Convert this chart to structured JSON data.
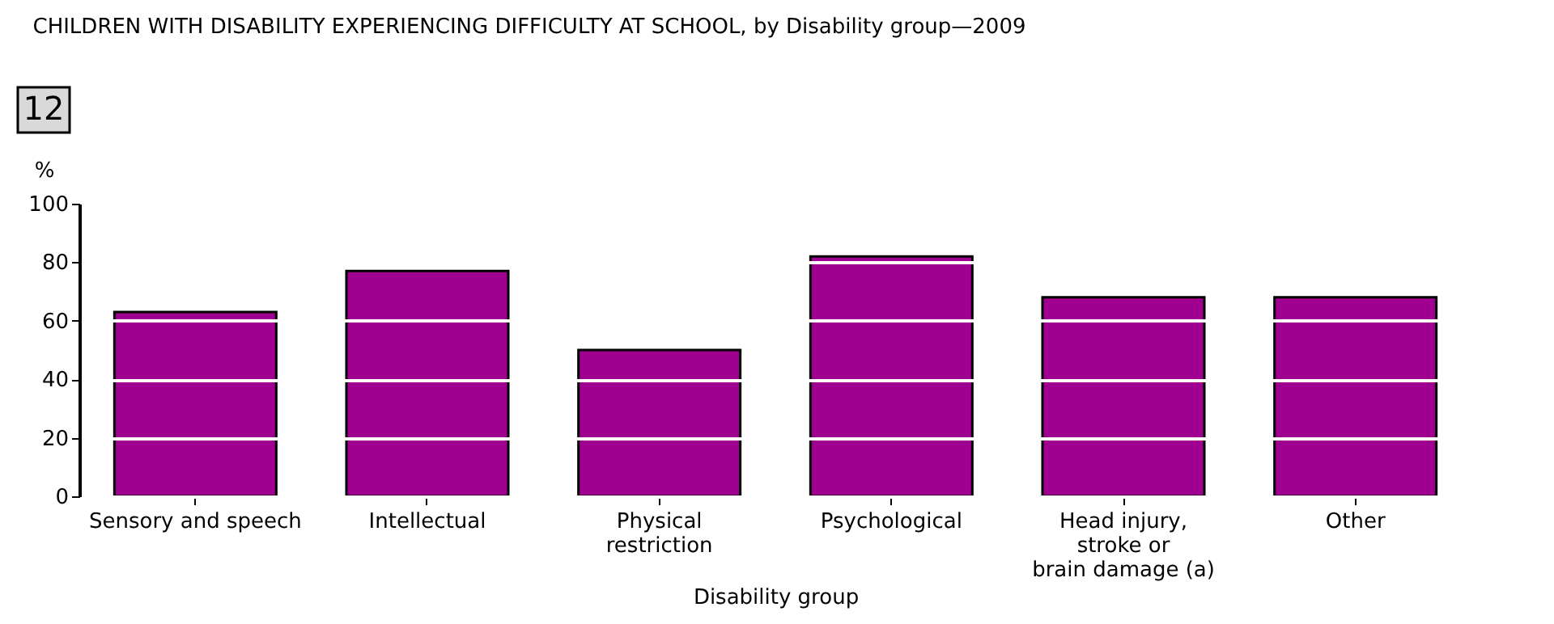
{
  "chart_data": {
    "type": "bar",
    "title": "CHILDREN WITH DISABILITY EXPERIENCING DIFFICULTY AT SCHOOL, by Disability group—2009",
    "annotations": [
      "12"
    ],
    "xlabel": "Disability group",
    "ylabel": "%",
    "categories": [
      "Sensory and speech",
      "Intellectual",
      "Physical\nrestriction",
      "Psychological",
      "Head injury,\nstroke or\nbrain damage (a)",
      "Other"
    ],
    "values": [
      63,
      77,
      50,
      82,
      68,
      68
    ],
    "color": "#a0008f",
    "ylim": [
      0,
      100
    ],
    "yticks": [
      0,
      20,
      40,
      60,
      80,
      100
    ],
    "grid": "y"
  }
}
